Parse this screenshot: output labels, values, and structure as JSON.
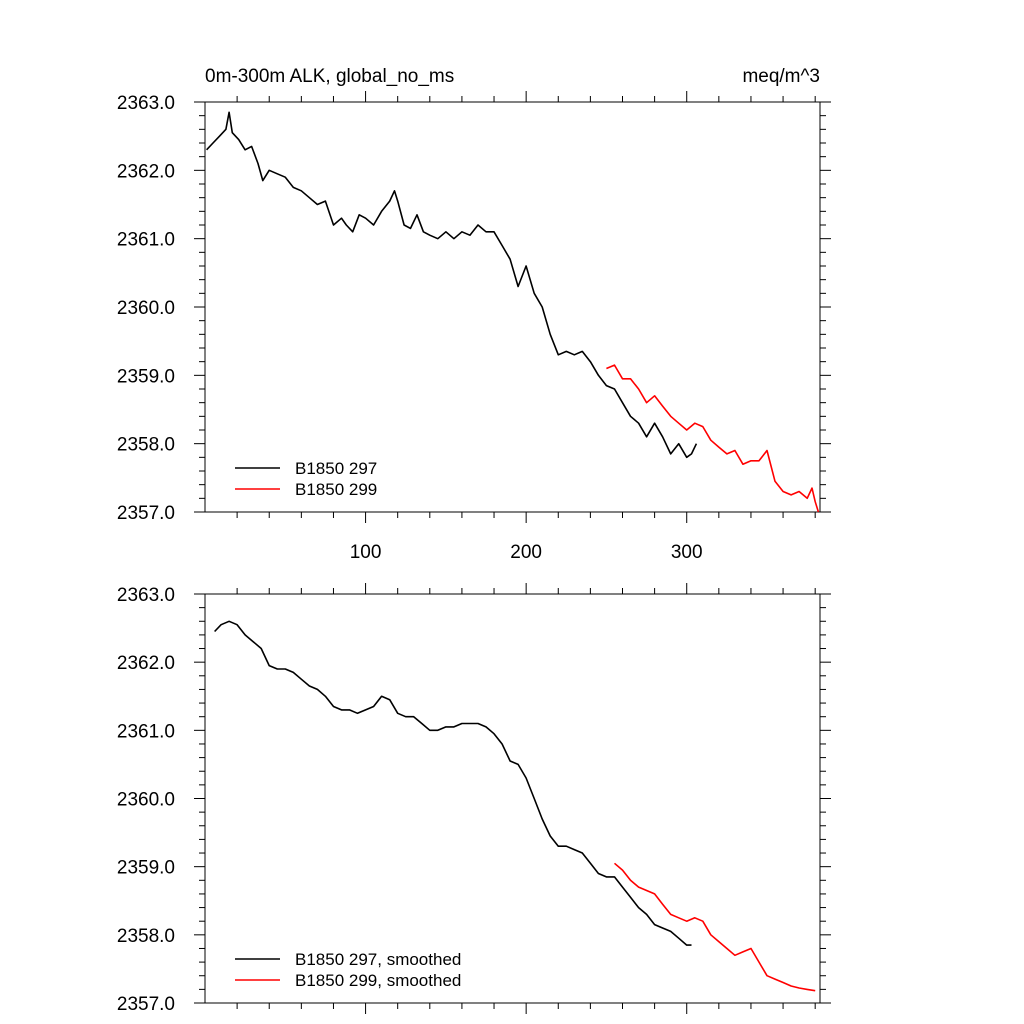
{
  "chart_data": [
    {
      "panel": "top",
      "type": "line",
      "title": "0m-300m ALK, global_no_ms",
      "units": "meq/m^3",
      "xlabel": "",
      "ylabel": "",
      "xlim": [
        0,
        383
      ],
      "ylim": [
        2357.0,
        2363.0
      ],
      "x_ticks": [
        100,
        200,
        300
      ],
      "x_tick_labels": [
        "100",
        "200",
        "300"
      ],
      "y_ticks": [
        2357.0,
        2358.0,
        2359.0,
        2360.0,
        2361.0,
        2362.0,
        2363.0
      ],
      "y_tick_labels": [
        "2357.0",
        "2358.0",
        "2359.0",
        "2360.0",
        "2361.0",
        "2362.0",
        "2363.0"
      ],
      "grid": false,
      "legend_position": "bottom-left",
      "series": [
        {
          "name": "B1850 297",
          "color": "#000000",
          "x": [
            1,
            5,
            9,
            13,
            15,
            17,
            21,
            25,
            29,
            33,
            36,
            40,
            45,
            50,
            55,
            60,
            65,
            70,
            75,
            80,
            85,
            88,
            92,
            96,
            100,
            105,
            110,
            115,
            118,
            120,
            124,
            128,
            132,
            136,
            140,
            145,
            150,
            155,
            160,
            165,
            170,
            175,
            180,
            185,
            190,
            195,
            200,
            205,
            210,
            215,
            220,
            225,
            230,
            235,
            240,
            245,
            250,
            255,
            260,
            265,
            270,
            275,
            280,
            285,
            290,
            295,
            300,
            303,
            306
          ],
          "y": [
            2362.3,
            2362.4,
            2362.5,
            2362.6,
            2362.85,
            2362.55,
            2362.45,
            2362.3,
            2362.35,
            2362.1,
            2361.85,
            2362.0,
            2361.95,
            2361.9,
            2361.75,
            2361.7,
            2361.6,
            2361.5,
            2361.55,
            2361.2,
            2361.3,
            2361.2,
            2361.1,
            2361.35,
            2361.3,
            2361.2,
            2361.4,
            2361.55,
            2361.7,
            2361.55,
            2361.2,
            2361.15,
            2361.35,
            2361.1,
            2361.05,
            2361.0,
            2361.1,
            2361.0,
            2361.1,
            2361.05,
            2361.2,
            2361.1,
            2361.1,
            2360.9,
            2360.7,
            2360.3,
            2360.6,
            2360.2,
            2360.0,
            2359.6,
            2359.3,
            2359.35,
            2359.3,
            2359.35,
            2359.2,
            2359.0,
            2358.85,
            2358.8,
            2358.6,
            2358.4,
            2358.3,
            2358.1,
            2358.3,
            2358.1,
            2357.85,
            2358.0,
            2357.8,
            2357.85,
            2358.0
          ]
        },
        {
          "name": "B1850 299",
          "color": "#ff0000",
          "x": [
            250,
            255,
            260,
            265,
            270,
            275,
            280,
            285,
            290,
            295,
            300,
            305,
            310,
            315,
            320,
            325,
            330,
            335,
            340,
            345,
            350,
            355,
            360,
            365,
            370,
            375,
            378,
            380,
            382
          ],
          "y": [
            2359.1,
            2359.15,
            2358.95,
            2358.95,
            2358.8,
            2358.6,
            2358.7,
            2358.55,
            2358.4,
            2358.3,
            2358.2,
            2358.3,
            2358.25,
            2358.05,
            2357.95,
            2357.85,
            2357.9,
            2357.7,
            2357.75,
            2357.75,
            2357.9,
            2357.45,
            2357.3,
            2357.25,
            2357.3,
            2357.2,
            2357.35,
            2357.15,
            2357.0
          ]
        }
      ]
    },
    {
      "panel": "bottom",
      "type": "line",
      "title": "",
      "xlabel": "",
      "ylabel": "",
      "xlim": [
        0,
        383
      ],
      "ylim": [
        2357.0,
        2363.0
      ],
      "x_ticks": [
        100,
        200,
        300
      ],
      "x_tick_labels": [],
      "y_ticks": [
        2357.0,
        2358.0,
        2359.0,
        2360.0,
        2361.0,
        2362.0,
        2363.0
      ],
      "y_tick_labels": [
        "2357.0",
        "2358.0",
        "2359.0",
        "2360.0",
        "2361.0",
        "2362.0",
        "2363.0"
      ],
      "grid": false,
      "legend_position": "bottom-left",
      "series": [
        {
          "name": "B1850 297, smoothed",
          "color": "#000000",
          "x": [
            6,
            10,
            15,
            20,
            25,
            30,
            35,
            40,
            45,
            50,
            55,
            60,
            65,
            70,
            75,
            80,
            85,
            90,
            95,
            100,
            105,
            110,
            115,
            120,
            125,
            130,
            135,
            140,
            145,
            150,
            155,
            160,
            165,
            170,
            175,
            180,
            185,
            190,
            195,
            200,
            205,
            210,
            215,
            220,
            225,
            230,
            235,
            240,
            245,
            250,
            255,
            260,
            265,
            270,
            275,
            280,
            285,
            290,
            295,
            300,
            303
          ],
          "y": [
            2362.45,
            2362.55,
            2362.6,
            2362.55,
            2362.4,
            2362.3,
            2362.2,
            2361.95,
            2361.9,
            2361.9,
            2361.85,
            2361.75,
            2361.65,
            2361.6,
            2361.5,
            2361.35,
            2361.3,
            2361.3,
            2361.25,
            2361.3,
            2361.35,
            2361.5,
            2361.45,
            2361.25,
            2361.2,
            2361.2,
            2361.1,
            2361.0,
            2361.0,
            2361.05,
            2361.05,
            2361.1,
            2361.1,
            2361.1,
            2361.05,
            2360.95,
            2360.8,
            2360.55,
            2360.5,
            2360.3,
            2360.0,
            2359.7,
            2359.45,
            2359.3,
            2359.3,
            2359.25,
            2359.2,
            2359.05,
            2358.9,
            2358.85,
            2358.85,
            2358.7,
            2358.55,
            2358.4,
            2358.3,
            2358.15,
            2358.1,
            2358.05,
            2357.95,
            2357.85,
            2357.85
          ]
        },
        {
          "name": "B1850 299, smoothed",
          "color": "#ff0000",
          "x": [
            255,
            260,
            265,
            270,
            275,
            280,
            285,
            290,
            295,
            300,
            305,
            310,
            315,
            320,
            325,
            330,
            335,
            340,
            345,
            350,
            355,
            360,
            365,
            370,
            375,
            380
          ],
          "y": [
            2359.05,
            2358.95,
            2358.8,
            2358.7,
            2358.65,
            2358.6,
            2358.45,
            2358.3,
            2358.25,
            2358.2,
            2358.25,
            2358.2,
            2358.0,
            2357.9,
            2357.8,
            2357.7,
            2357.75,
            2357.8,
            2357.6,
            2357.4,
            2357.35,
            2357.3,
            2357.25,
            2357.22,
            2357.2,
            2357.18
          ]
        }
      ]
    }
  ]
}
